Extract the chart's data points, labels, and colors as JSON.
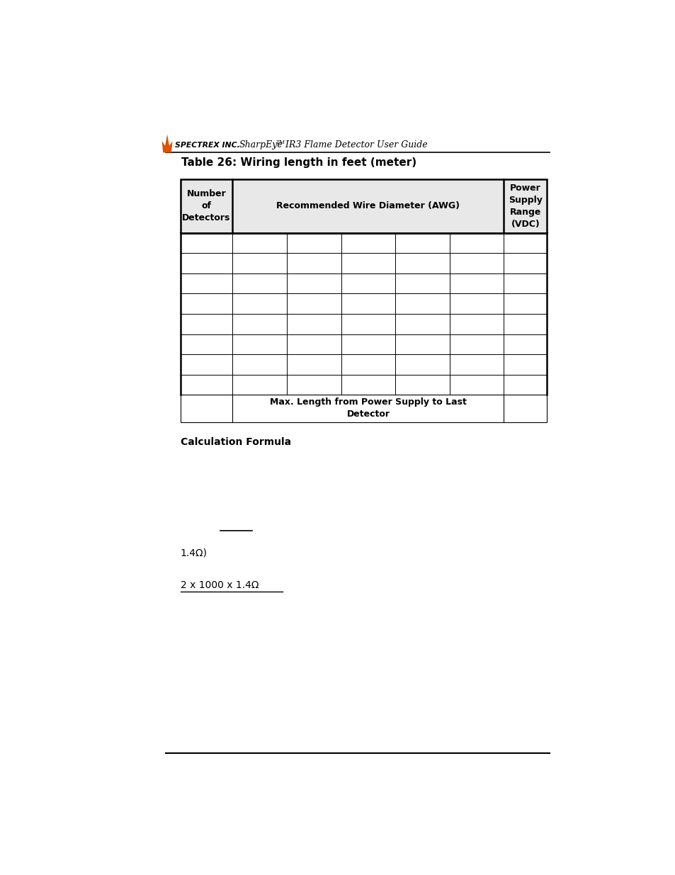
{
  "table_title": "Table 26: Wiring length in feet (meter)",
  "header_col1": "Number\nof\nDetectors",
  "header_col2": "Recommended Wire Diameter (AWG)",
  "header_col3": "Power\nSupply\nRange\n(VDC)",
  "footer_text": "Max. Length from Power Supply to Last\nDetector",
  "calc_label": "Calculation Formula",
  "text_omega": "1.4Ω)",
  "text_formula": "2 x 1000 x 1.4Ω",
  "header_bg": "#e8e8e8",
  "num_data_rows": 8,
  "num_sub_cols": 5
}
